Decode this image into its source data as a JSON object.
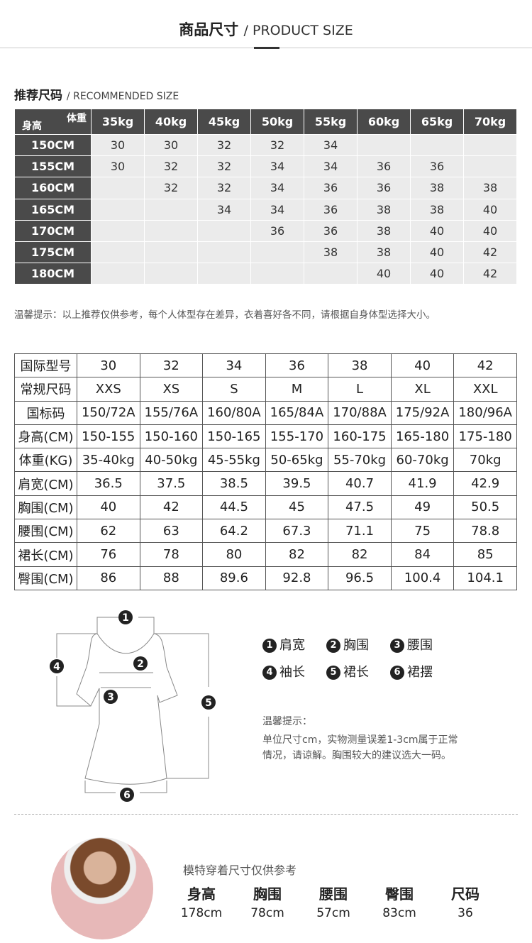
{
  "header": {
    "title_cn": "商品尺寸",
    "title_en": "/ PRODUCT SIZE"
  },
  "recommended": {
    "title_cn": "推荐尺码",
    "title_en": "/ RECOMMENDED SIZE",
    "corner_weight": "体重",
    "corner_height": "身高",
    "weights": [
      "35kg",
      "40kg",
      "45kg",
      "50kg",
      "55kg",
      "60kg",
      "65kg",
      "70kg"
    ],
    "rows": [
      {
        "height": "150CM",
        "sizes": [
          "30",
          "30",
          "32",
          "32",
          "34",
          "",
          "",
          ""
        ]
      },
      {
        "height": "155CM",
        "sizes": [
          "30",
          "32",
          "32",
          "34",
          "34",
          "36",
          "36",
          ""
        ]
      },
      {
        "height": "160CM",
        "sizes": [
          "",
          "32",
          "32",
          "34",
          "36",
          "36",
          "38",
          "38"
        ]
      },
      {
        "height": "165CM",
        "sizes": [
          "",
          "",
          "34",
          "34",
          "36",
          "38",
          "38",
          "40"
        ]
      },
      {
        "height": "170CM",
        "sizes": [
          "",
          "",
          "",
          "36",
          "36",
          "38",
          "40",
          "40"
        ]
      },
      {
        "height": "175CM",
        "sizes": [
          "",
          "",
          "",
          "",
          "38",
          "38",
          "40",
          "42"
        ]
      },
      {
        "height": "180CM",
        "sizes": [
          "",
          "",
          "",
          "",
          "",
          "40",
          "40",
          "42"
        ]
      }
    ]
  },
  "tip": "温馨提示：以上推荐仅供参考，每个人体型存在差异，衣着喜好各不同，请根据自身体型选择大小。",
  "size_table": [
    [
      "国际型号",
      "30",
      "32",
      "34",
      "36",
      "38",
      "40",
      "42"
    ],
    [
      "常规尺码",
      "XXS",
      "XS",
      "S",
      "M",
      "L",
      "XL",
      "XXL"
    ],
    [
      "国标码",
      "150/72A",
      "155/76A",
      "160/80A",
      "165/84A",
      "170/88A",
      "175/92A",
      "180/96A"
    ],
    [
      "身高(CM)",
      "150-155",
      "150-160",
      "150-165",
      "155-170",
      "160-175",
      "165-180",
      "175-180"
    ],
    [
      "体重(KG)",
      "35-40kg",
      "40-50kg",
      "45-55kg",
      "50-65kg",
      "55-70kg",
      "60-70kg",
      "70kg"
    ],
    [
      "肩宽(CM)",
      "36.5",
      "37.5",
      "38.5",
      "39.5",
      "40.7",
      "41.9",
      "42.9"
    ],
    [
      "胸围(CM)",
      "40",
      "42",
      "44.5",
      "45",
      "47.5",
      "49",
      "50.5"
    ],
    [
      "腰围(CM)",
      "62",
      "63",
      "64.2",
      "67.3",
      "71.1",
      "75",
      "78.8"
    ],
    [
      "裙长(CM)",
      "76",
      "78",
      "80",
      "82",
      "82",
      "84",
      "85"
    ],
    [
      "臀围(CM)",
      "86",
      "88",
      "89.6",
      "92.8",
      "96.5",
      "100.4",
      "104.1"
    ]
  ],
  "diagram": {
    "markers": [
      "1",
      "2",
      "3",
      "4",
      "5",
      "6"
    ]
  },
  "legend": [
    {
      "n": "1",
      "label": "肩宽"
    },
    {
      "n": "2",
      "label": "胸围"
    },
    {
      "n": "3",
      "label": "腰围"
    },
    {
      "n": "4",
      "label": "袖长"
    },
    {
      "n": "5",
      "label": "裙长"
    },
    {
      "n": "6",
      "label": "裙摆"
    }
  ],
  "note": {
    "title": "温馨提示：",
    "line1": "单位尺寸cm，实物测量误差1-3cm属于正常",
    "line2": "情况，请谅解。胸围较大的建议选大一码。"
  },
  "model": {
    "caption": "模特穿着尺寸仅供参考",
    "headers": [
      "身高",
      "胸围",
      "腰围",
      "臀围",
      "尺码"
    ],
    "values": [
      "178cm",
      "78cm",
      "57cm",
      "83cm",
      "36"
    ]
  }
}
